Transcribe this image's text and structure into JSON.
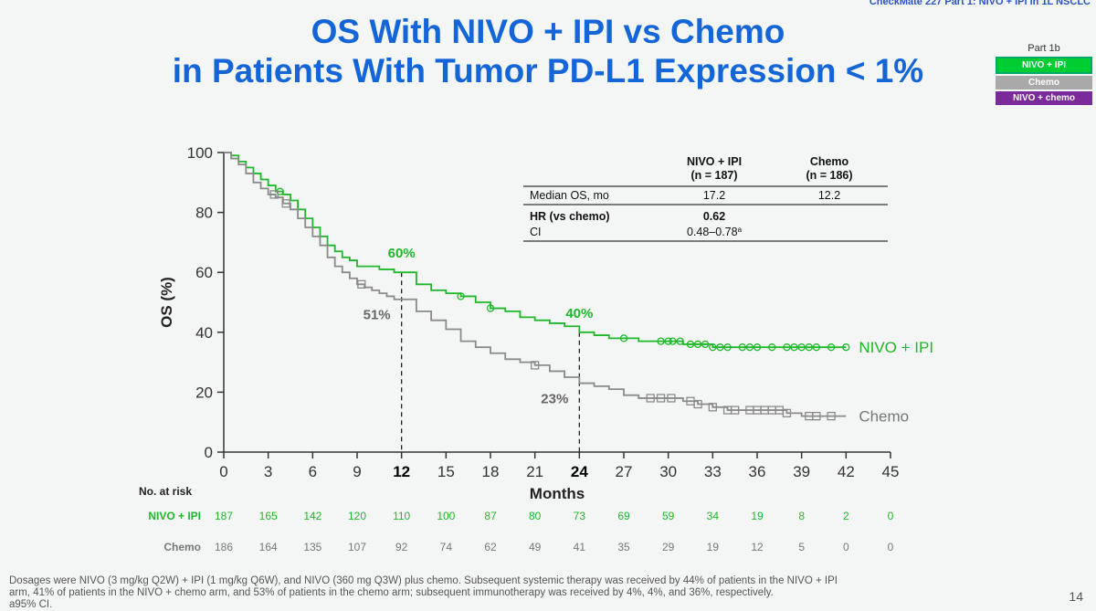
{
  "header": {
    "top_text": "CheckMate 227 Part 1: NIVO + IPI in 1L NSCLC"
  },
  "title": {
    "line1": "OS With NIVO + IPI vs Chemo",
    "line2": "in Patients With Tumor PD-L1 Expression < 1%"
  },
  "legend_box": {
    "title": "Part 1b",
    "items": [
      {
        "label": "NIVO + IPI",
        "color": "#00cc33"
      },
      {
        "label": "Chemo",
        "color": "#a9a9a9"
      },
      {
        "label": "NIVO + chemo",
        "color": "#7a2a9a"
      }
    ]
  },
  "stats_table": {
    "col1": {
      "line1": "NIVO + IPI",
      "line2": "(n = 187)"
    },
    "col2": {
      "line1": "Chemo",
      "line2": "(n = 186)"
    },
    "rows": [
      {
        "label": "Median OS, mo",
        "v1": "17.2",
        "v2": "12.2"
      },
      {
        "label": "HR (vs chemo)",
        "v1": "0.62",
        "v2": ""
      },
      {
        "label": "CI",
        "v1": "0.48–0.78",
        "v1_sup": "a",
        "v2": ""
      }
    ]
  },
  "chart_data": {
    "type": "line",
    "title": "",
    "xlabel": "Months",
    "ylabel": "OS (%)",
    "xlim": [
      0,
      45
    ],
    "ylim": [
      0,
      100
    ],
    "xticks": [
      0,
      3,
      6,
      9,
      12,
      15,
      18,
      21,
      24,
      27,
      30,
      33,
      36,
      39,
      42,
      45
    ],
    "yticks": [
      0,
      20,
      40,
      60,
      80,
      100
    ],
    "bold_xticks": [
      12,
      24
    ],
    "series": [
      {
        "name": "NIVO + IPI",
        "color": "#1fb82a",
        "marker": "circle",
        "x": [
          0,
          0.5,
          1,
          1.5,
          2,
          2.5,
          3,
          3.5,
          4,
          4.5,
          5,
          5.5,
          6,
          6.5,
          7,
          7.5,
          8,
          8.5,
          9,
          9.5,
          10,
          10.5,
          11,
          11.5,
          12,
          13,
          14,
          15,
          16,
          17,
          18,
          19,
          20,
          21,
          22,
          23,
          24,
          25,
          26,
          27,
          28,
          29,
          30,
          31,
          32,
          33,
          34,
          35,
          36,
          37,
          38,
          39,
          40,
          41,
          42
        ],
        "y": [
          100,
          99,
          97,
          95,
          93,
          91,
          89,
          87,
          86,
          84,
          81,
          78,
          75,
          72,
          69,
          67,
          65,
          64,
          62,
          62,
          62,
          61,
          61,
          60,
          60,
          56,
          54,
          53,
          52,
          50,
          48,
          47,
          45,
          44,
          43,
          42,
          40,
          39,
          38,
          38,
          37,
          37,
          37,
          36,
          36,
          35,
          35,
          35,
          35,
          35,
          35,
          35,
          35,
          35,
          35
        ],
        "censors": [
          3.8,
          16,
          18,
          27,
          29.5,
          30,
          30.3,
          30.8,
          31.5,
          32,
          32.5,
          33,
          33.5,
          34,
          35,
          35.5,
          36,
          37,
          38,
          38.5,
          39,
          39.5,
          40,
          41,
          42
        ],
        "end_label": "NIVO + IPI",
        "at_risk": [
          "187",
          "165",
          "142",
          "120",
          "110",
          "100",
          "87",
          "80",
          "73",
          "69",
          "59",
          "34",
          "19",
          "8",
          "2",
          "0"
        ]
      },
      {
        "name": "Chemo",
        "color": "#8a8a8a",
        "marker": "square",
        "x": [
          0,
          0.5,
          1,
          1.5,
          2,
          2.5,
          3,
          3.5,
          4,
          4.5,
          5,
          5.5,
          6,
          6.5,
          7,
          7.5,
          8,
          8.5,
          9,
          9.5,
          10,
          10.5,
          11,
          11.5,
          12,
          13,
          14,
          15,
          16,
          17,
          18,
          19,
          20,
          21,
          22,
          23,
          24,
          25,
          26,
          27,
          28,
          29,
          30,
          31,
          32,
          33,
          34,
          35,
          36,
          37,
          38,
          39,
          40,
          41,
          42
        ],
        "y": [
          100,
          98,
          96,
          93,
          90,
          88,
          86,
          85,
          83,
          81,
          78,
          75,
          72,
          69,
          65,
          62,
          60,
          58,
          56,
          55,
          54,
          53,
          52,
          51,
          51,
          47,
          44,
          41,
          37,
          35,
          33,
          31,
          30,
          29,
          27,
          25,
          23,
          22,
          21,
          19,
          18,
          18,
          18,
          17,
          16,
          15,
          14,
          14,
          14,
          14,
          13,
          12,
          12,
          12,
          12
        ],
        "censors": [
          3.4,
          4.2,
          9.3,
          21,
          28.8,
          29.5,
          30.2,
          31.5,
          32,
          33,
          34,
          34.5,
          35.5,
          36,
          36.5,
          37,
          37.5,
          38,
          39.5,
          40,
          41
        ],
        "end_label": "Chemo",
        "at_risk": [
          "186",
          "164",
          "135",
          "107",
          "92",
          "74",
          "62",
          "49",
          "41",
          "35",
          "29",
          "19",
          "12",
          "5",
          "0",
          "0"
        ]
      }
    ],
    "annotations": [
      {
        "x": 12,
        "y": 60,
        "label": "60%",
        "series": "NIVO + IPI"
      },
      {
        "x": 12,
        "y": 51,
        "label": "51%",
        "series": "Chemo"
      },
      {
        "x": 24,
        "y": 40,
        "label": "40%",
        "series": "NIVO + IPI"
      },
      {
        "x": 24,
        "y": 23,
        "label": "23%",
        "series": "Chemo"
      }
    ],
    "at_risk_title": "No. at risk",
    "grid": false
  },
  "footnote": {
    "line1": "Dosages were NIVO (3 mg/kg Q2W) + IPI (1 mg/kg Q6W), and NIVO (360 mg Q3W) plus chemo. Subsequent systemic therapy was received by 44% of patients in the NIVO + IPI",
    "line2": "arm, 41% of patients in the NIVO + chemo arm, and 53% of patients in the chemo arm; subsequent immunotherapy was received by 4%, 4%, and 36%, respectively.",
    "line3": "a95% CI."
  },
  "page_number": "14"
}
